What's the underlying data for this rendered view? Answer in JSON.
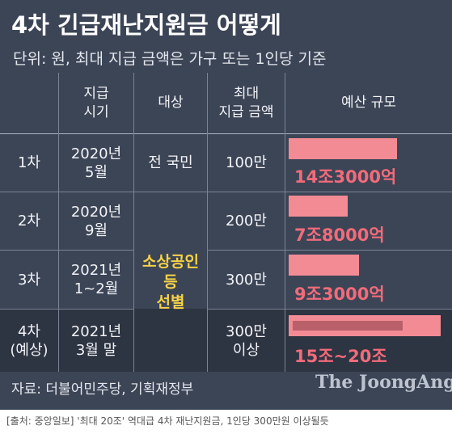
{
  "title": "4차 긴급재난지원금 어떻게",
  "subtitle": "단위: 원, 최대 지급 금액은 가구 또는 1인당 기준",
  "headers": {
    "period": "지급\n시기",
    "target": "대상",
    "max": "최대\n지급 금액",
    "budget": "예산 규모"
  },
  "rows": [
    {
      "label": "1차",
      "period": "2020년\n5월",
      "target": "전 국민",
      "max": "100만",
      "budget_label": "14조3000억"
    },
    {
      "label": "2차",
      "period": "2020년\n9월",
      "max": "200만",
      "budget_label": "7조8000억"
    },
    {
      "label": "3차",
      "period": "2021년\n1~2월",
      "max": "300만",
      "budget_label": "9조3000억"
    },
    {
      "label": "4차\n(예상)",
      "period": "2021년\n3월 말",
      "max": "300만\n이상",
      "budget_label": "15조~20조"
    }
  ],
  "merged_target": "소상공인\n등\n선별",
  "source": "자료: 더불어민주당, 기획재정부",
  "logo": "The JoongAng",
  "caption": "[출처: 중앙일보] '최대 20조' 역대급 4차 재난지원금, 1인당 300만원 이상될듯",
  "colors": {
    "background": "#3c4556",
    "bar": "#f38b95",
    "amount_text": "#f26b7a",
    "highlight": "#f6d247"
  },
  "chart_data": {
    "type": "bar",
    "orientation": "horizontal",
    "unit": "조원",
    "categories": [
      "1차",
      "2차",
      "3차",
      "4차(예상)"
    ],
    "values": [
      14.3,
      7.8,
      9.3,
      20
    ],
    "range_4th": [
      15,
      20
    ]
  }
}
